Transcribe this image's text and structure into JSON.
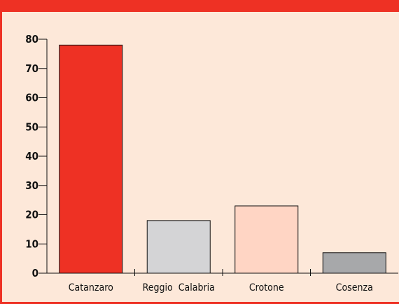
{
  "colors": {
    "accent": "#ee3124",
    "background": "#fde8d9",
    "axis": "#111111"
  },
  "chart_data": {
    "type": "bar",
    "categories": [
      "Catanzaro",
      "Reggio  Calabria",
      "Crotone",
      "Cosenza"
    ],
    "values": [
      78,
      18,
      23,
      7
    ],
    "bar_colors": [
      "#ee3124",
      "#d4d4d6",
      "#ffd5c4",
      "#a7a8aa"
    ],
    "ylim": [
      0,
      80
    ],
    "yticks": [
      0,
      10,
      20,
      30,
      40,
      50,
      60,
      70,
      80
    ],
    "title": "",
    "xlabel": "",
    "ylabel": "",
    "grid": false,
    "legend": "none"
  }
}
